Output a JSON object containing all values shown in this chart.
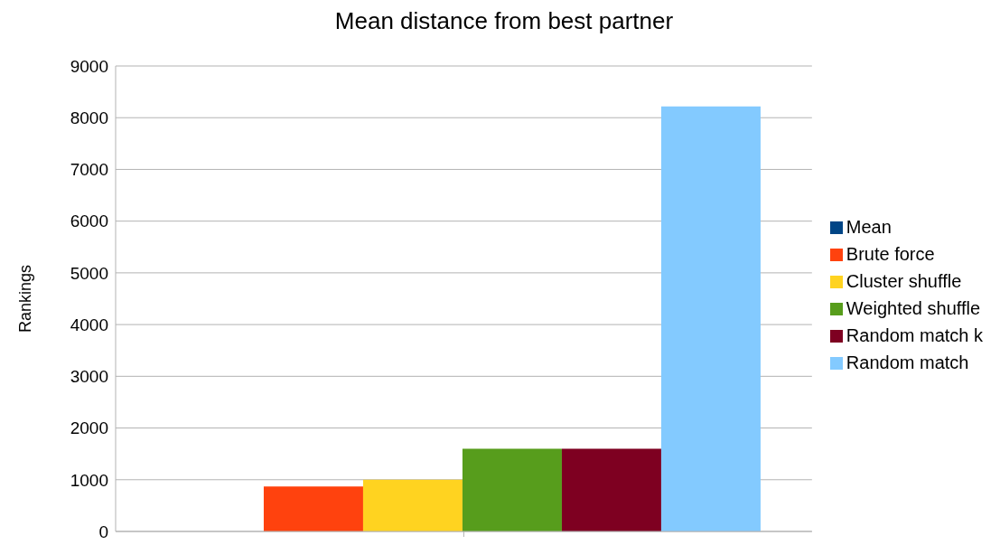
{
  "chart_data": {
    "type": "bar",
    "title": "Mean distance from best partner",
    "ylabel": "Rankings",
    "categories": [
      null
    ],
    "series": [
      {
        "name": "Mean",
        "color": "#004586",
        "values": [
          0
        ]
      },
      {
        "name": "Brute force",
        "color": "#ff420e",
        "values": [
          870
        ]
      },
      {
        "name": "Cluster shuffle",
        "color": "#ffd320",
        "values": [
          1000
        ]
      },
      {
        "name": "Weighted shuffle",
        "color": "#579d1c",
        "values": [
          1600
        ]
      },
      {
        "name": "Random match k",
        "color": "#7e0021",
        "values": [
          1600
        ]
      },
      {
        "name": "Random match",
        "color": "#83caff",
        "values": [
          8220
        ]
      }
    ],
    "ylim": [
      0,
      9000
    ],
    "yticks": [
      0,
      1000,
      2000,
      3000,
      4000,
      5000,
      6000,
      7000,
      8000,
      9000
    ],
    "grid": "y",
    "legend": "right"
  }
}
